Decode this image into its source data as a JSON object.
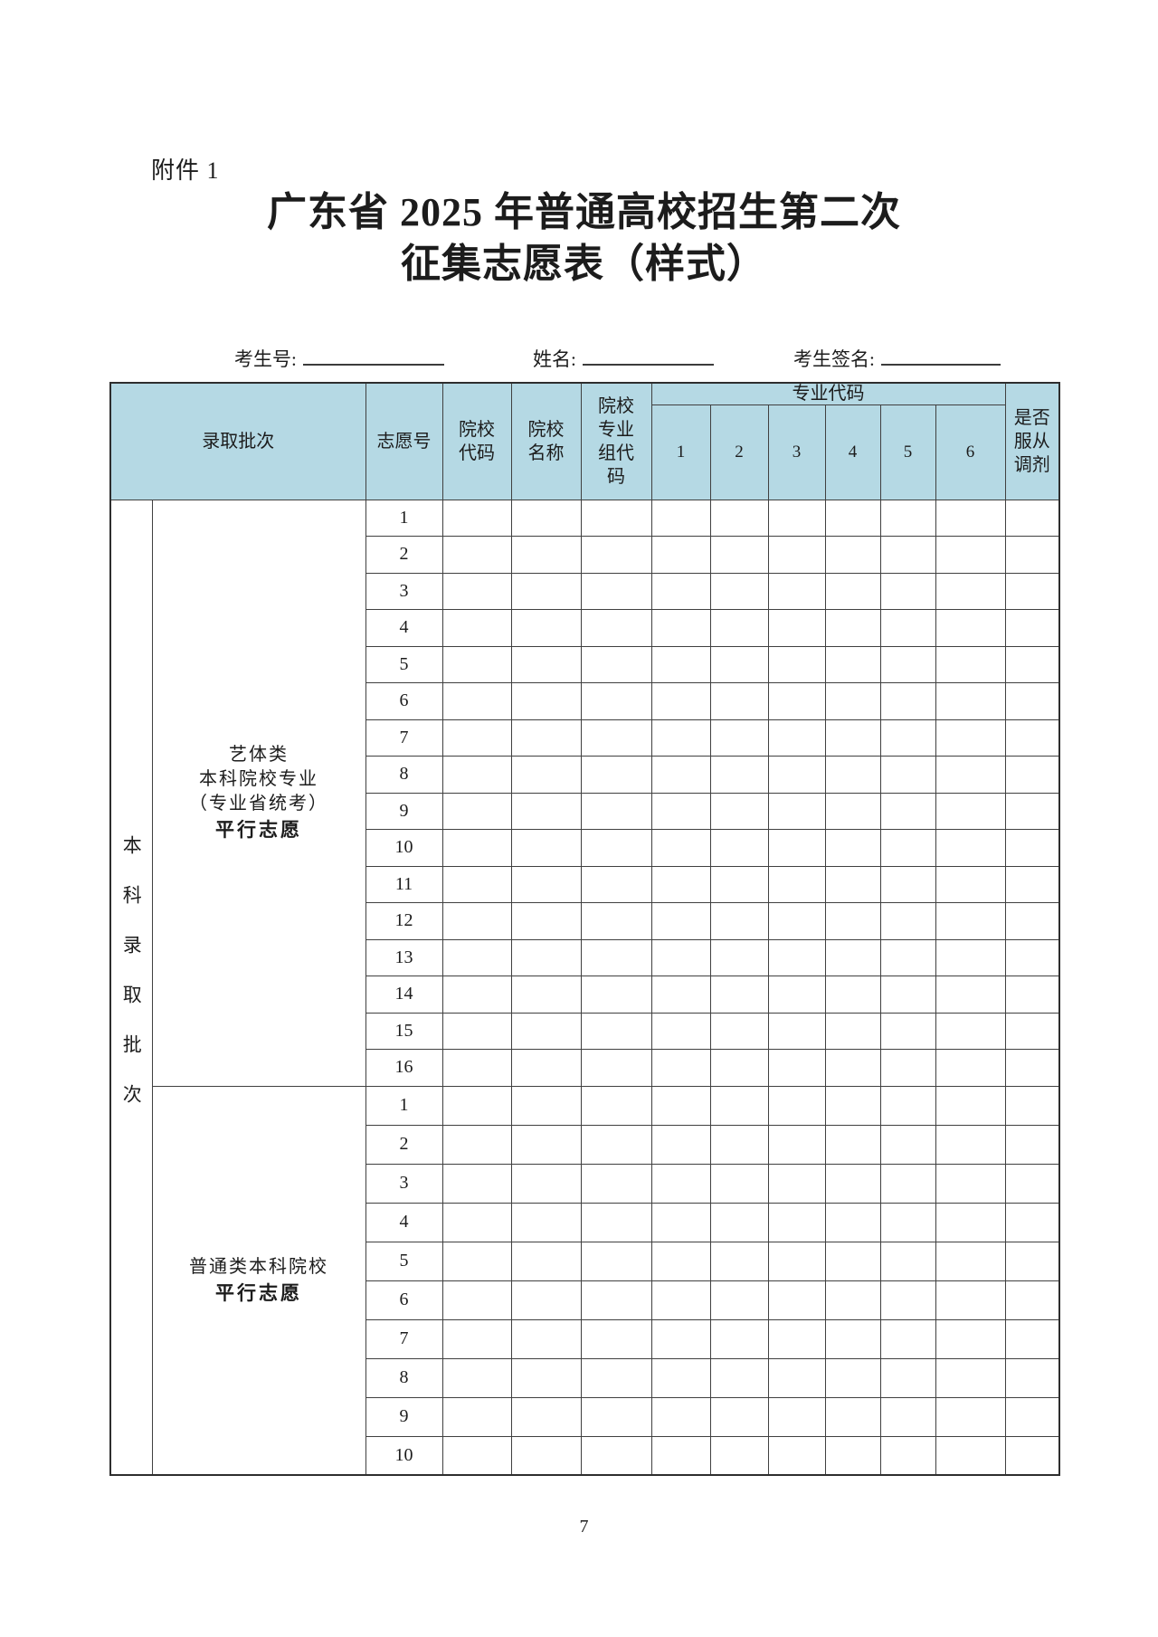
{
  "document": {
    "attachment": "附件 1",
    "title_line1": "广东省 2025 年普通高校招生第二次",
    "title_line2": "征集志愿表（样式）",
    "page_number": "7"
  },
  "info_row": {
    "candidate_no_label": "考生号:",
    "name_label": "姓名:",
    "signature_label": "考生签名:"
  },
  "table": {
    "header": {
      "batch": "录取批次",
      "volunteer_no": "志愿号",
      "college_code": "院校代码",
      "college_name": "院校名称",
      "major_group_code": "院校专业组代码",
      "major_code": "专业代码",
      "major_cols": [
        "1",
        "2",
        "3",
        "4",
        "5",
        "6"
      ],
      "obey_adjust": "是否服从调剂"
    },
    "batch_group_vertical": "本科录取批次",
    "sections": [
      {
        "category_lines": [
          "艺体类",
          "本科院校专业",
          "（专业省统考）"
        ],
        "category_bold": "平行志愿",
        "row_numbers": [
          "1",
          "2",
          "3",
          "4",
          "5",
          "6",
          "7",
          "8",
          "9",
          "10",
          "11",
          "12",
          "13",
          "14",
          "15",
          "16"
        ]
      },
      {
        "category_lines": [
          "普通类本科院校"
        ],
        "category_bold": "平行志愿",
        "row_numbers": [
          "1",
          "2",
          "3",
          "4",
          "5",
          "6",
          "7",
          "8",
          "9",
          "10"
        ]
      }
    ],
    "column_keys": [
      "college-code",
      "college-name",
      "major-group-code",
      "major-1",
      "major-2",
      "major-3",
      "major-4",
      "major-5",
      "major-6",
      "obey-adjustment"
    ]
  },
  "colors": {
    "header_bg": "#b5d9e4",
    "border": "#404040",
    "text": "#1c1c1c"
  }
}
